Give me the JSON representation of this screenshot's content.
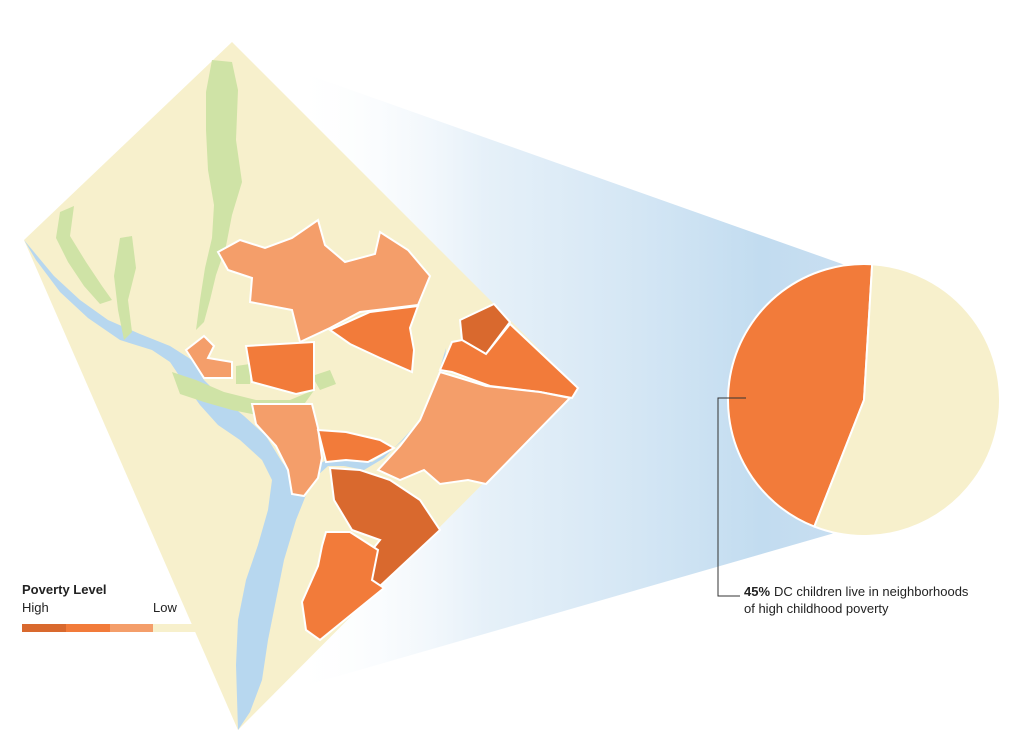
{
  "colors": {
    "background": "#ffffff",
    "low": "#f7f0cc",
    "mid": "#f49e6a",
    "high": "#f27b3a",
    "highest": "#d9692e",
    "park": "#cfe3a6",
    "water": "#b7d7ef",
    "outline": "#ffffff"
  },
  "legend": {
    "title": "Poverty Level",
    "high_label": "High",
    "low_label": "Low",
    "swatches": [
      "#d9692e",
      "#f27b3a",
      "#f49e6a",
      "#f7f0cc"
    ]
  },
  "callout": {
    "percent": "45%",
    "text": "DC children live in neighborhoods of high childhood poverty"
  },
  "chart_data": {
    "type": "pie",
    "slices": [
      {
        "value": 45,
        "color": "#f27b3a"
      },
      {
        "value": 55,
        "color": "#f7f0cc"
      }
    ]
  }
}
